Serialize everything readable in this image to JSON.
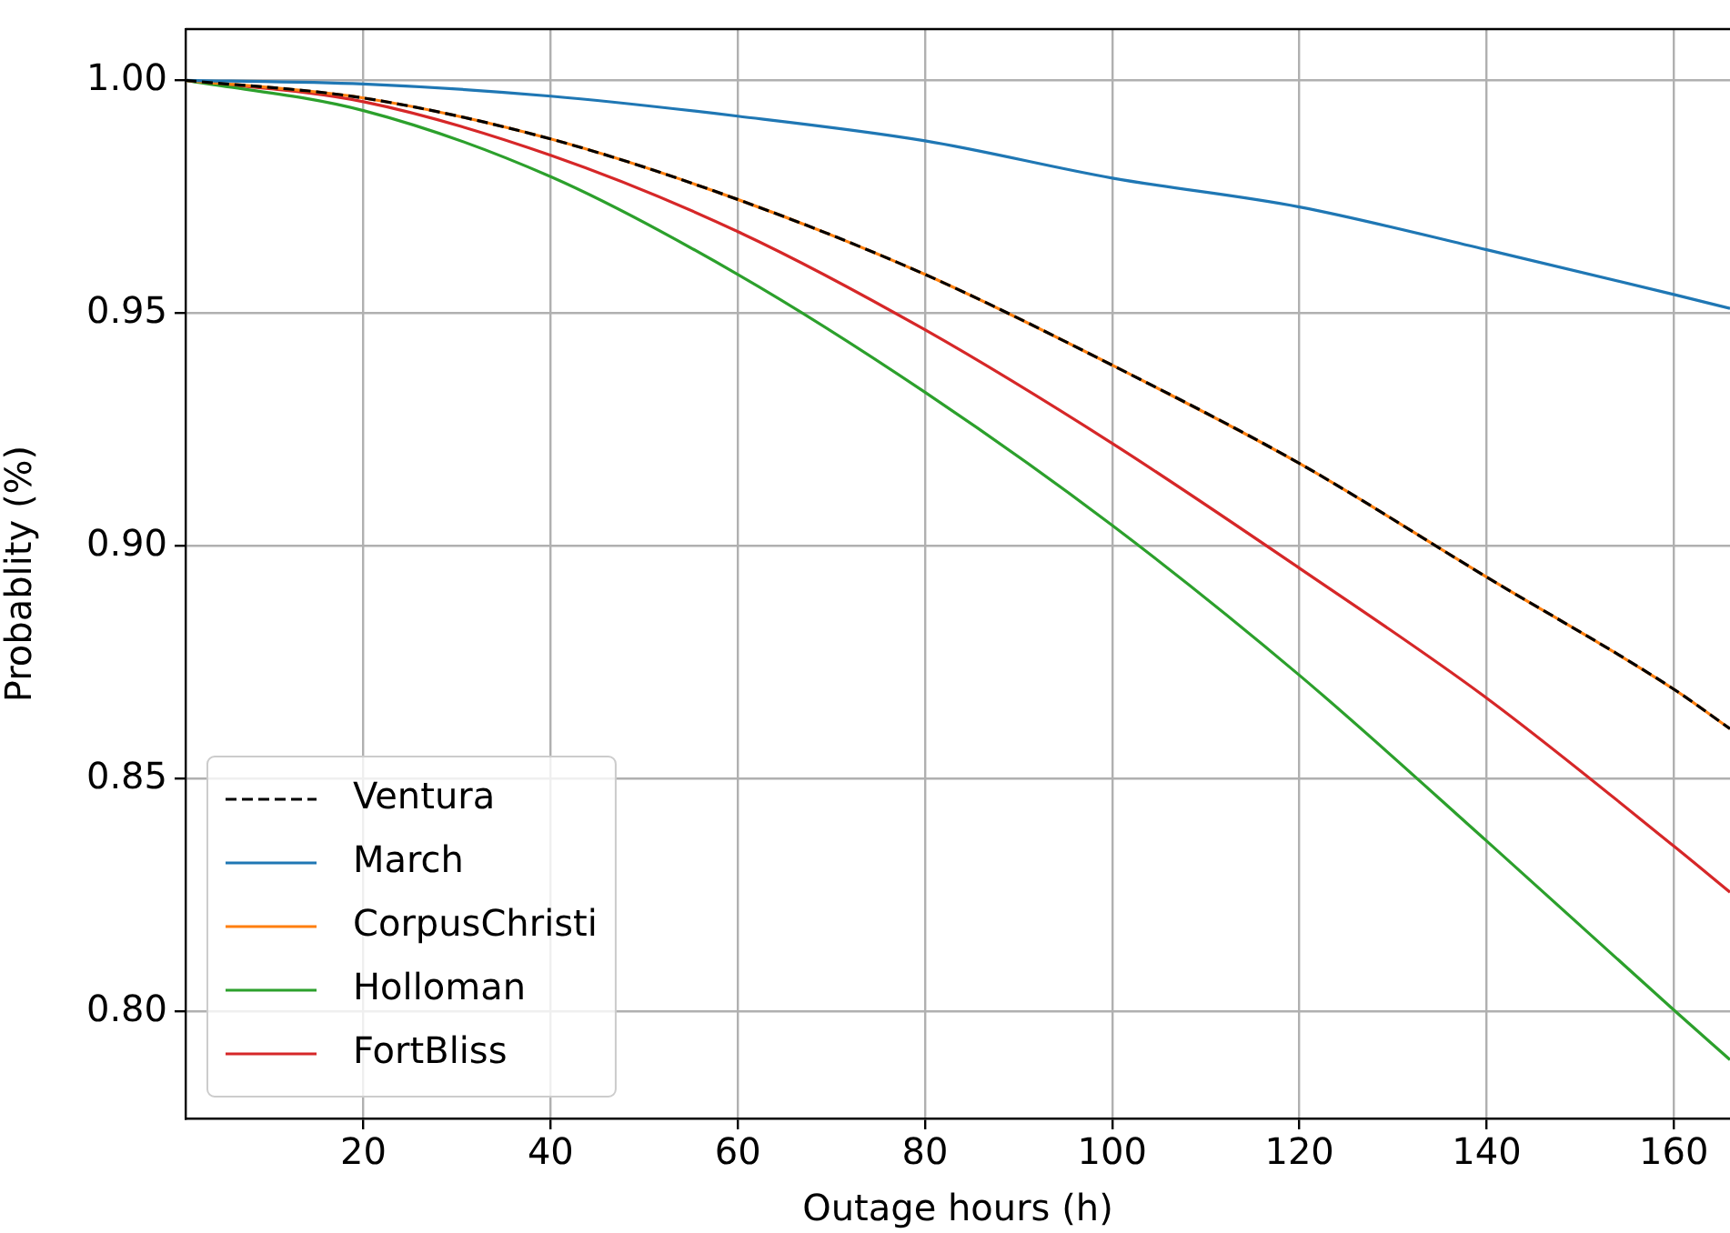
{
  "chart_data": {
    "type": "line",
    "xlabel": "Outage hours (h)",
    "ylabel": "Probablity (%)",
    "x": [
      1,
      20,
      40,
      60,
      80,
      100,
      120,
      140,
      160,
      166
    ],
    "series": [
      {
        "name": "Ventura",
        "color": "#000000",
        "line_style": "dashed",
        "values": [
          1.0,
          0.9962,
          0.9874,
          0.9744,
          0.9583,
          0.9388,
          0.9177,
          0.8933,
          0.8692,
          0.8607
        ]
      },
      {
        "name": "March",
        "color": "#1f77b4",
        "values": [
          1.0,
          0.9992,
          0.9966,
          0.9923,
          0.987,
          0.979,
          0.9728,
          0.9636,
          0.954,
          0.951
        ]
      },
      {
        "name": "CorpusChristi",
        "color": "#ff7f0e",
        "values": [
          1.0,
          0.9962,
          0.9874,
          0.9744,
          0.9583,
          0.9388,
          0.9177,
          0.8933,
          0.8692,
          0.8607
        ]
      },
      {
        "name": "Holloman",
        "color": "#2ca02c",
        "values": [
          1.0,
          0.9935,
          0.9793,
          0.9583,
          0.933,
          0.9044,
          0.8722,
          0.8366,
          0.8003,
          0.7896
        ]
      },
      {
        "name": "FortBliss",
        "color": "#d62728",
        "values": [
          1.0,
          0.9954,
          0.9839,
          0.9675,
          0.9464,
          0.922,
          0.8952,
          0.8673,
          0.8355,
          0.8256
        ]
      }
    ],
    "xlim": [
      1,
      166
    ],
    "xticks": [
      20,
      40,
      60,
      80,
      100,
      120,
      140,
      160
    ],
    "ylim": [
      0.777,
      1.011
    ],
    "yticks": [
      {
        "value": 0.8,
        "label": "0.80"
      },
      {
        "value": 0.85,
        "label": "0.85"
      },
      {
        "value": 0.9,
        "label": "0.90"
      },
      {
        "value": 0.95,
        "label": "0.95"
      },
      {
        "value": 1.0,
        "label": "1.00"
      }
    ],
    "grid": true,
    "legend": "bottom left",
    "line_style": "solid",
    "marker": "none"
  }
}
